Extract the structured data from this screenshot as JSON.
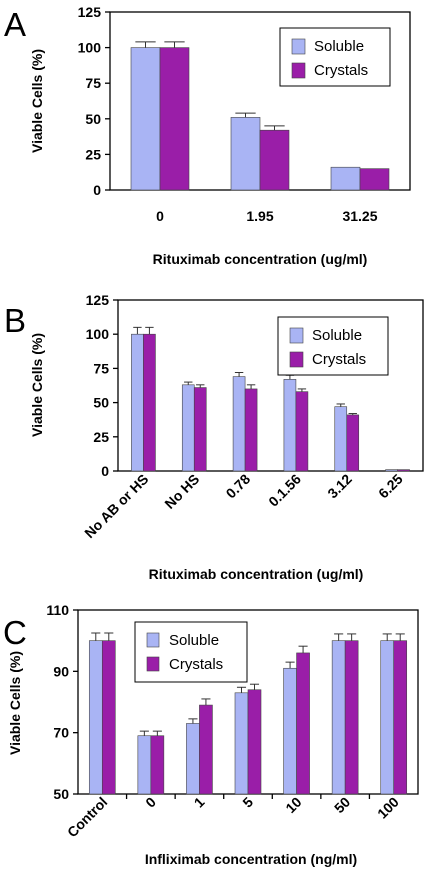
{
  "colors": {
    "soluble": "#a9b4f4",
    "crystals": "#9a1ea8",
    "axis": "#000000"
  },
  "chart_data": [
    {
      "panel": "A",
      "type": "bar",
      "categories": [
        "0",
        "1.95",
        "31.25"
      ],
      "series": [
        {
          "name": "Soluble",
          "values": [
            100,
            51,
            16
          ],
          "errors": [
            4,
            3,
            0
          ]
        },
        {
          "name": "Crystals",
          "values": [
            100,
            42,
            15
          ],
          "errors": [
            4,
            3,
            0
          ]
        }
      ],
      "xlabel": "Rituximab concentration (ug/ml)",
      "ylabel": "Viable Cells (%)",
      "ylim": [
        0,
        125
      ],
      "yticks": [
        "0",
        "25",
        "50",
        "75",
        "100",
        "125"
      ],
      "legend": "top-right",
      "grid": false
    },
    {
      "panel": "B",
      "type": "bar",
      "categories": [
        "No AB or HS",
        "No HS",
        "0.78",
        "0.1.56",
        "3.12",
        "6.25"
      ],
      "series": [
        {
          "name": "Soluble",
          "values": [
            100,
            63,
            69,
            67,
            47,
            1
          ],
          "errors": [
            5,
            2,
            3,
            3,
            2,
            0
          ]
        },
        {
          "name": "Crystals",
          "values": [
            100,
            61,
            60,
            58,
            41,
            1
          ],
          "errors": [
            5,
            2,
            3,
            2,
            1,
            0
          ]
        }
      ],
      "xlabel": "Rituximab concentration (ug/ml)",
      "ylabel": "Viable Cells (%)",
      "ylim": [
        0,
        125
      ],
      "yticks": [
        "0",
        "25",
        "50",
        "75",
        "100",
        "125"
      ],
      "legend": "top-right",
      "grid": false
    },
    {
      "panel": "C",
      "type": "bar",
      "categories": [
        "Control",
        "0",
        "1",
        "5",
        "10",
        "50",
        "100"
      ],
      "series": [
        {
          "name": "Soluble",
          "values": [
            100,
            69,
            73,
            83,
            91,
            100,
            100
          ],
          "errors": [
            2.5,
            1.5,
            1.5,
            1.8,
            2.0,
            2.2,
            2.2
          ]
        },
        {
          "name": "Crystals",
          "values": [
            100,
            69,
            79,
            84,
            96,
            100,
            100
          ],
          "errors": [
            2.5,
            1.5,
            2.0,
            1.8,
            2.2,
            2.2,
            2.2
          ]
        }
      ],
      "xlabel": "Infliximab concentration (ng/ml)",
      "ylabel": "Viable Cells (%)",
      "ylim": [
        50,
        110
      ],
      "yticks": [
        "50",
        "70",
        "90",
        "110"
      ],
      "legend": "top-right",
      "grid": false
    }
  ]
}
